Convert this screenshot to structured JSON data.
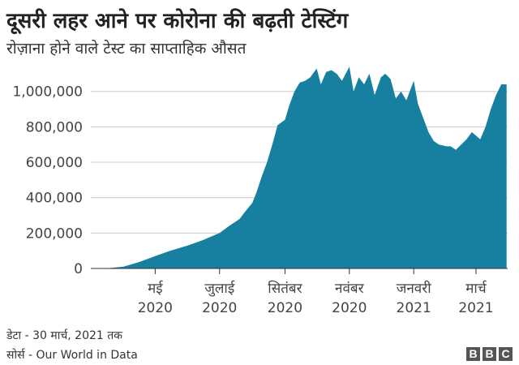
{
  "colors": {
    "area": "#1780a1",
    "grid": "#cccccc",
    "axis": "#333333"
  },
  "chart_data": {
    "type": "area",
    "title": "दूसरी लहर आने पर कोरोना की बढ़ती टेस्टिंग",
    "subtitle": "रोज़ाना होने वाले टेस्ट का साप्ताहिक औसत",
    "ylim": [
      0,
      1150000
    ],
    "y_ticks": [
      {
        "value": 0,
        "label": "0"
      },
      {
        "value": 200000,
        "label": "200,000"
      },
      {
        "value": 400000,
        "label": "400,000"
      },
      {
        "value": 600000,
        "label": "600,000"
      },
      {
        "value": 800000,
        "label": "800,000"
      },
      {
        "value": 1000000,
        "label": "1,000,000"
      }
    ],
    "x_ticks": [
      {
        "date": "2020-05-01",
        "label_line1": "मई",
        "label_line2": "2020"
      },
      {
        "date": "2020-07-01",
        "label_line1": "जुलाई",
        "label_line2": "2020"
      },
      {
        "date": "2020-09-01",
        "label_line1": "सितंबर",
        "label_line2": "2020"
      },
      {
        "date": "2020-11-01",
        "label_line1": "नवंबर",
        "label_line2": "2020"
      },
      {
        "date": "2021-01-01",
        "label_line1": "जनवरी",
        "label_line2": "2021"
      },
      {
        "date": "2021-03-01",
        "label_line1": "मार्च",
        "label_line2": "2021"
      }
    ],
    "series": [
      {
        "x": [
          "2020-03-15",
          "2020-04-01",
          "2020-04-15",
          "2020-05-01",
          "2020-05-15",
          "2020-06-01",
          "2020-06-15",
          "2020-07-01",
          "2020-07-10",
          "2020-07-20",
          "2020-07-25",
          "2020-08-01",
          "2020-08-05",
          "2020-08-10",
          "2020-08-15",
          "2020-08-20",
          "2020-08-25",
          "2020-09-01",
          "2020-09-05",
          "2020-09-10",
          "2020-09-15",
          "2020-09-20",
          "2020-09-25",
          "2020-10-01",
          "2020-10-05",
          "2020-10-10",
          "2020-10-15",
          "2020-10-20",
          "2020-10-25",
          "2020-11-01",
          "2020-11-05",
          "2020-11-10",
          "2020-11-15",
          "2020-11-20",
          "2020-11-25",
          "2020-12-01",
          "2020-12-05",
          "2020-12-10",
          "2020-12-15",
          "2020-12-20",
          "2020-12-25",
          "2021-01-01",
          "2021-01-05",
          "2021-01-10",
          "2021-01-15",
          "2021-01-20",
          "2021-01-25",
          "2021-02-01",
          "2021-02-05",
          "2021-02-10",
          "2021-02-15",
          "2021-02-20",
          "2021-02-25",
          "2021-03-01",
          "2021-03-05",
          "2021-03-10",
          "2021-03-15",
          "2021-03-20",
          "2021-03-25",
          "2021-03-30"
        ],
        "values": [
          0,
          10000,
          35000,
          70000,
          100000,
          130000,
          160000,
          200000,
          240000,
          280000,
          320000,
          370000,
          430000,
          520000,
          600000,
          700000,
          810000,
          840000,
          920000,
          1000000,
          1050000,
          1060000,
          1080000,
          1130000,
          1040000,
          1110000,
          1120000,
          1100000,
          1060000,
          1140000,
          1000000,
          1080000,
          1040000,
          1100000,
          980000,
          1080000,
          1100000,
          1070000,
          960000,
          1000000,
          950000,
          1060000,
          930000,
          850000,
          770000,
          720000,
          700000,
          690000,
          690000,
          670000,
          700000,
          730000,
          770000,
          750000,
          730000,
          800000,
          900000,
          980000,
          1040000,
          1040000
        ]
      }
    ],
    "note": "डेटा - 30 मार्च, 2021 तक",
    "source": "सोर्स - Our World in Data"
  },
  "logo": [
    "B",
    "B",
    "C"
  ]
}
